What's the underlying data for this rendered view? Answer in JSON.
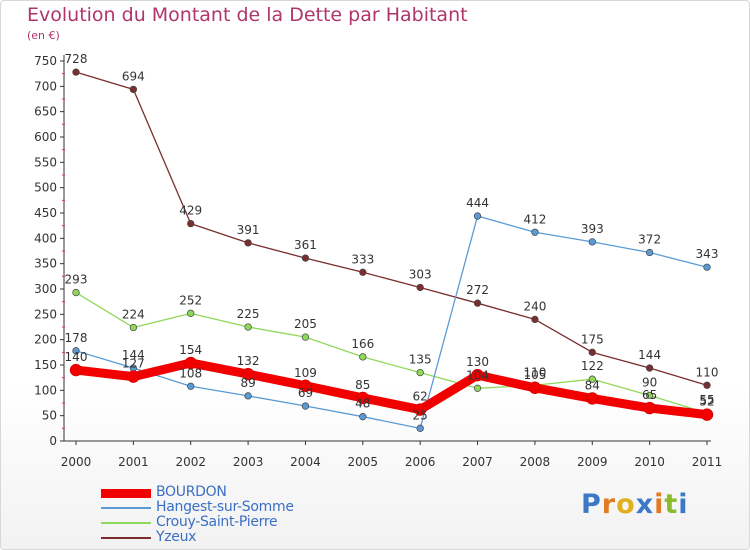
{
  "title": "Evolution du Montant de la Dette par Habitant",
  "subtitle": "(en €)",
  "logo": {
    "text": "Proxiti",
    "colors": [
      "#3b79c6",
      "#e07b24",
      "#e0b020",
      "#3b79c6",
      "#e07b24",
      "#8abb2a",
      "#3b79c6"
    ]
  },
  "chart_data": {
    "type": "line",
    "title": "Evolution du Montant de la Dette par Habitant",
    "subtitle": "(en €)",
    "xlabel": "",
    "ylabel": "",
    "x": [
      "2000",
      "2001",
      "2002",
      "2003",
      "2004",
      "2005",
      "2006",
      "2007",
      "2008",
      "2009",
      "2010",
      "2011"
    ],
    "ylim": [
      0,
      750
    ],
    "yticks": [
      0,
      50,
      100,
      150,
      200,
      250,
      300,
      350,
      400,
      450,
      500,
      550,
      600,
      650,
      700,
      750
    ],
    "grid": false,
    "legend_position": "bottom-left",
    "series": [
      {
        "name": "Yzeux",
        "color": "#7a2e2e",
        "values": [
          728,
          694,
          429,
          391,
          361,
          333,
          303,
          272,
          240,
          175,
          144,
          110
        ]
      },
      {
        "name": "Crouy-Saint-Pierre",
        "color": "#8fd85a",
        "values": [
          293,
          224,
          252,
          225,
          205,
          166,
          135,
          104,
          110,
          122,
          90,
          55
        ]
      },
      {
        "name": "Hangest-sur-Somme",
        "color": "#5b9bd5",
        "values": [
          178,
          144,
          108,
          89,
          69,
          48,
          25,
          444,
          412,
          393,
          372,
          343
        ]
      },
      {
        "name": "BOURDON",
        "color": "#f20000",
        "values": [
          140,
          127,
          154,
          132,
          109,
          85,
          62,
          130,
          105,
          84,
          65,
          52
        ]
      }
    ],
    "legend": [
      "BOURDON",
      "Hangest-sur-Somme",
      "Crouy-Saint-Pierre",
      "Yzeux"
    ]
  }
}
